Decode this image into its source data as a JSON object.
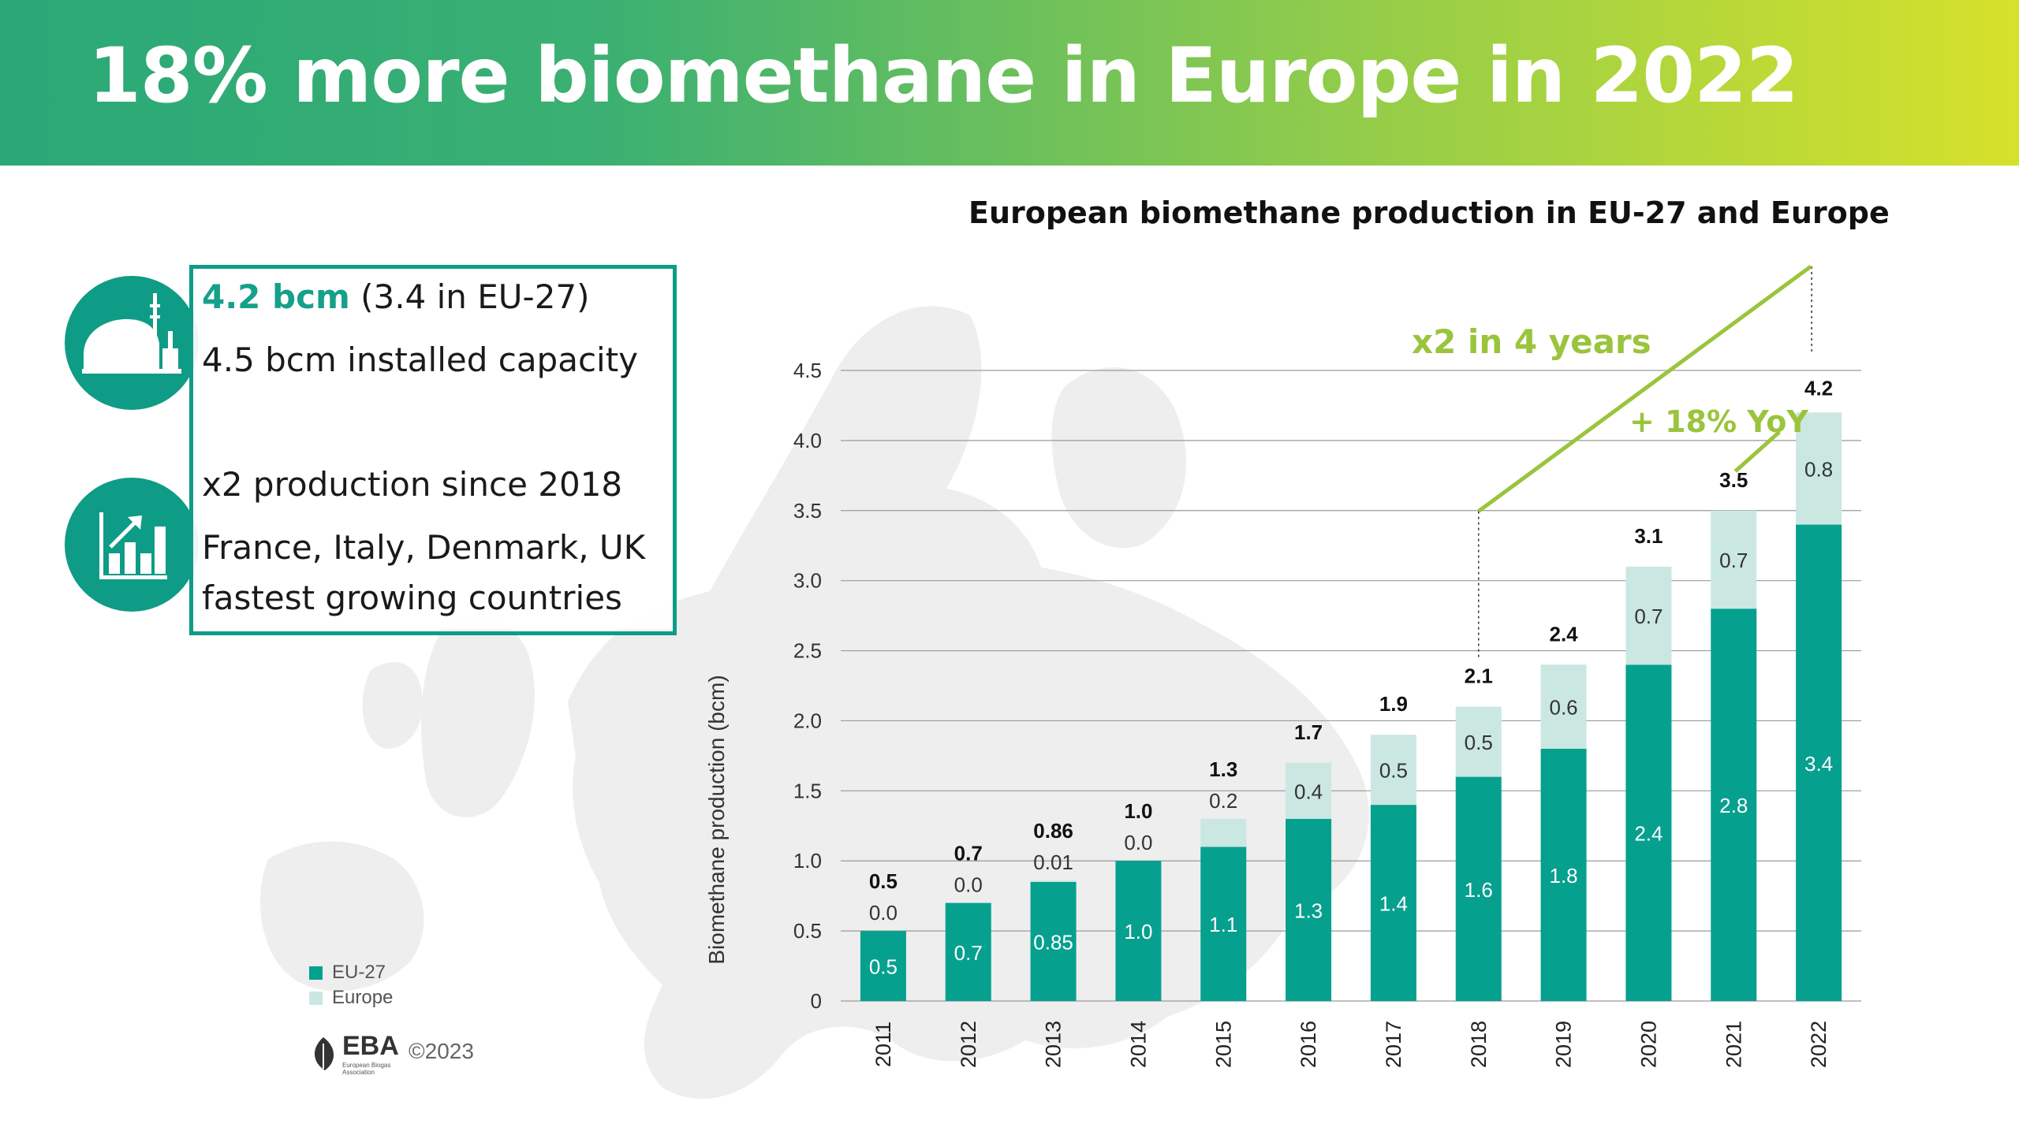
{
  "header": {
    "title": "18% more biomethane in Europe in 2022"
  },
  "info": {
    "line1_accent": "4.2 bcm",
    "line1_rest": " (3.4 in EU-27)",
    "line2": "4.5 bcm installed capacity",
    "line3": "x2 production since 2018",
    "line4": "France, Italy, Denmark, UK",
    "line5": "fastest growing countries",
    "icon1": "biogas-plant-icon",
    "icon2": "growth-chart-icon"
  },
  "colors": {
    "eu27": "#06a08f",
    "europe": "#cbe7e2",
    "annotation": "#9ac43c",
    "box_border": "#0f9c86"
  },
  "legend": {
    "eu27": "EU-27",
    "europe": "Europe"
  },
  "footer": {
    "logo": "EBA",
    "logo_sub1": "European Biogas",
    "logo_sub2": "Association",
    "copyright": "©2023"
  },
  "chart_data": {
    "type": "bar",
    "stacked": true,
    "title": "European biomethane production in EU-27 and Europe",
    "ylabel": "Biomethane production (bcm)",
    "xlabel": "",
    "ylim": [
      0,
      4.5
    ],
    "yticks": [
      "0",
      "0.5",
      "1.0",
      "1.5",
      "2.0",
      "2.5",
      "3.0",
      "3.5",
      "4.0",
      "4.5"
    ],
    "grid": true,
    "legend_position": "bottom-left",
    "categories": [
      "2011",
      "2012",
      "2013",
      "2014",
      "2015",
      "2016",
      "2017",
      "2018",
      "2019",
      "2020",
      "2021",
      "2022"
    ],
    "series": [
      {
        "name": "EU-27",
        "values": [
          0.5,
          0.7,
          0.85,
          1.0,
          1.1,
          1.3,
          1.4,
          1.6,
          1.8,
          2.4,
          2.8,
          3.4
        ],
        "labels": [
          "0.5",
          "0.7",
          "0.85",
          "1.0",
          "1.1",
          "1.3",
          "1.4",
          "1.6",
          "1.8",
          "2.4",
          "2.8",
          "3.4"
        ]
      },
      {
        "name": "Europe",
        "values": [
          0.0,
          0.0,
          0.01,
          0.0,
          0.2,
          0.4,
          0.5,
          0.5,
          0.6,
          0.7,
          0.7,
          0.8
        ],
        "labels": [
          "0.0",
          "0.0",
          "0.01",
          "0.0",
          "0.2",
          "0.4",
          "0.5",
          "0.5",
          "0.6",
          "0.7",
          "0.7",
          "0.8"
        ]
      }
    ],
    "totals": [
      0.5,
      0.7,
      0.86,
      1.0,
      1.3,
      1.7,
      1.9,
      2.1,
      2.4,
      3.1,
      3.5,
      4.2
    ],
    "total_labels": [
      "0.5",
      "0.7",
      "0.86",
      "1.0",
      "1.3",
      "1.7",
      "1.9",
      "2.1",
      "2.4",
      "3.1",
      "3.5",
      "4.2"
    ],
    "annotations": [
      "x2 in 4 years",
      "+ 18% YoY"
    ]
  }
}
